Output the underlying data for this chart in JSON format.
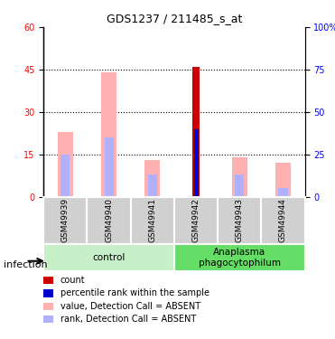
{
  "title": "GDS1237 / 211485_s_at",
  "samples": [
    "GSM49939",
    "GSM49940",
    "GSM49941",
    "GSM49942",
    "GSM49943",
    "GSM49944"
  ],
  "value_absent": [
    23,
    44,
    13,
    0,
    14,
    12
  ],
  "rank_absent": [
    15,
    21,
    8,
    0,
    8,
    3
  ],
  "count_red": [
    0,
    0,
    0,
    46,
    0,
    0
  ],
  "percentile_blue": [
    0,
    0,
    0,
    24,
    0,
    0
  ],
  "ylim_left": [
    0,
    60
  ],
  "ylim_right": [
    0,
    100
  ],
  "yticks_left": [
    0,
    15,
    30,
    45,
    60
  ],
  "yticks_right": [
    0,
    25,
    50,
    75,
    100
  ],
  "ytick_labels_right": [
    "0",
    "25",
    "50",
    "75",
    "100%"
  ],
  "bar_width": 0.35,
  "groups": [
    {
      "label": "control",
      "samples": [
        0,
        1,
        2
      ],
      "color": "#c8f0c8"
    },
    {
      "label": "Anaplasma\nphagocytophilum",
      "samples": [
        3,
        4,
        5
      ],
      "color": "#66dd66"
    }
  ],
  "color_value_absent": "#ffb0b0",
  "color_rank_absent": "#b0b0ff",
  "color_count": "#cc0000",
  "color_percentile": "#0000cc",
  "color_bg_samples": "#d0d0d0",
  "infection_label": "infection",
  "legend_items": [
    {
      "label": "count",
      "color": "#cc0000"
    },
    {
      "label": "percentile rank within the sample",
      "color": "#0000cc"
    },
    {
      "label": "value, Detection Call = ABSENT",
      "color": "#ffb0b0"
    },
    {
      "label": "rank, Detection Call = ABSENT",
      "color": "#b0b0ff"
    }
  ]
}
